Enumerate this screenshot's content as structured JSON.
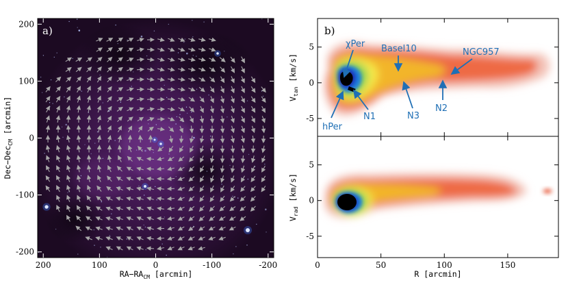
{
  "chart_data": [
    {
      "type": "image",
      "panel_label": "a)",
      "xlabel": "RA−RA",
      "xlabel_sub": "CM",
      "xlabel_unit": "[arcmin]",
      "ylabel": "Dec−Dec",
      "ylabel_sub": "CM",
      "ylabel_unit": "[arcmin]",
      "xlim": [
        210,
        -210
      ],
      "ylim": [
        -210,
        210
      ],
      "xticks": [
        200,
        100,
        0,
        -100,
        -200
      ],
      "yticks": [
        -200,
        -100,
        0,
        100,
        200
      ],
      "colors": {
        "background": "#2a0f33",
        "arrow": "#a8a8a8",
        "star": "#6fa8ff"
      }
    },
    {
      "type": "heatmap",
      "panel_label": "b)",
      "ylabel": "V",
      "ylabel_sub": "tan",
      "ylabel_unit": "[km/s]",
      "xlim": [
        0,
        190
      ],
      "ylim": [
        -7.5,
        9
      ],
      "xticks": [
        0,
        50,
        100,
        150
      ],
      "yticks": [
        -5,
        0,
        5
      ],
      "annotations": [
        "χPer",
        "Basel10",
        "NGC957",
        "N1",
        "N2",
        "N3",
        "hPer"
      ]
    },
    {
      "type": "heatmap",
      "xlabel": "R [arcmin]",
      "ylabel": "V",
      "ylabel_sub": "rad",
      "ylabel_unit": "[km/s]",
      "xlim": [
        0,
        190
      ],
      "ylim": [
        -8,
        9
      ],
      "xticks": [
        0,
        50,
        100,
        150
      ],
      "yticks": [
        -5,
        0,
        5
      ]
    }
  ]
}
